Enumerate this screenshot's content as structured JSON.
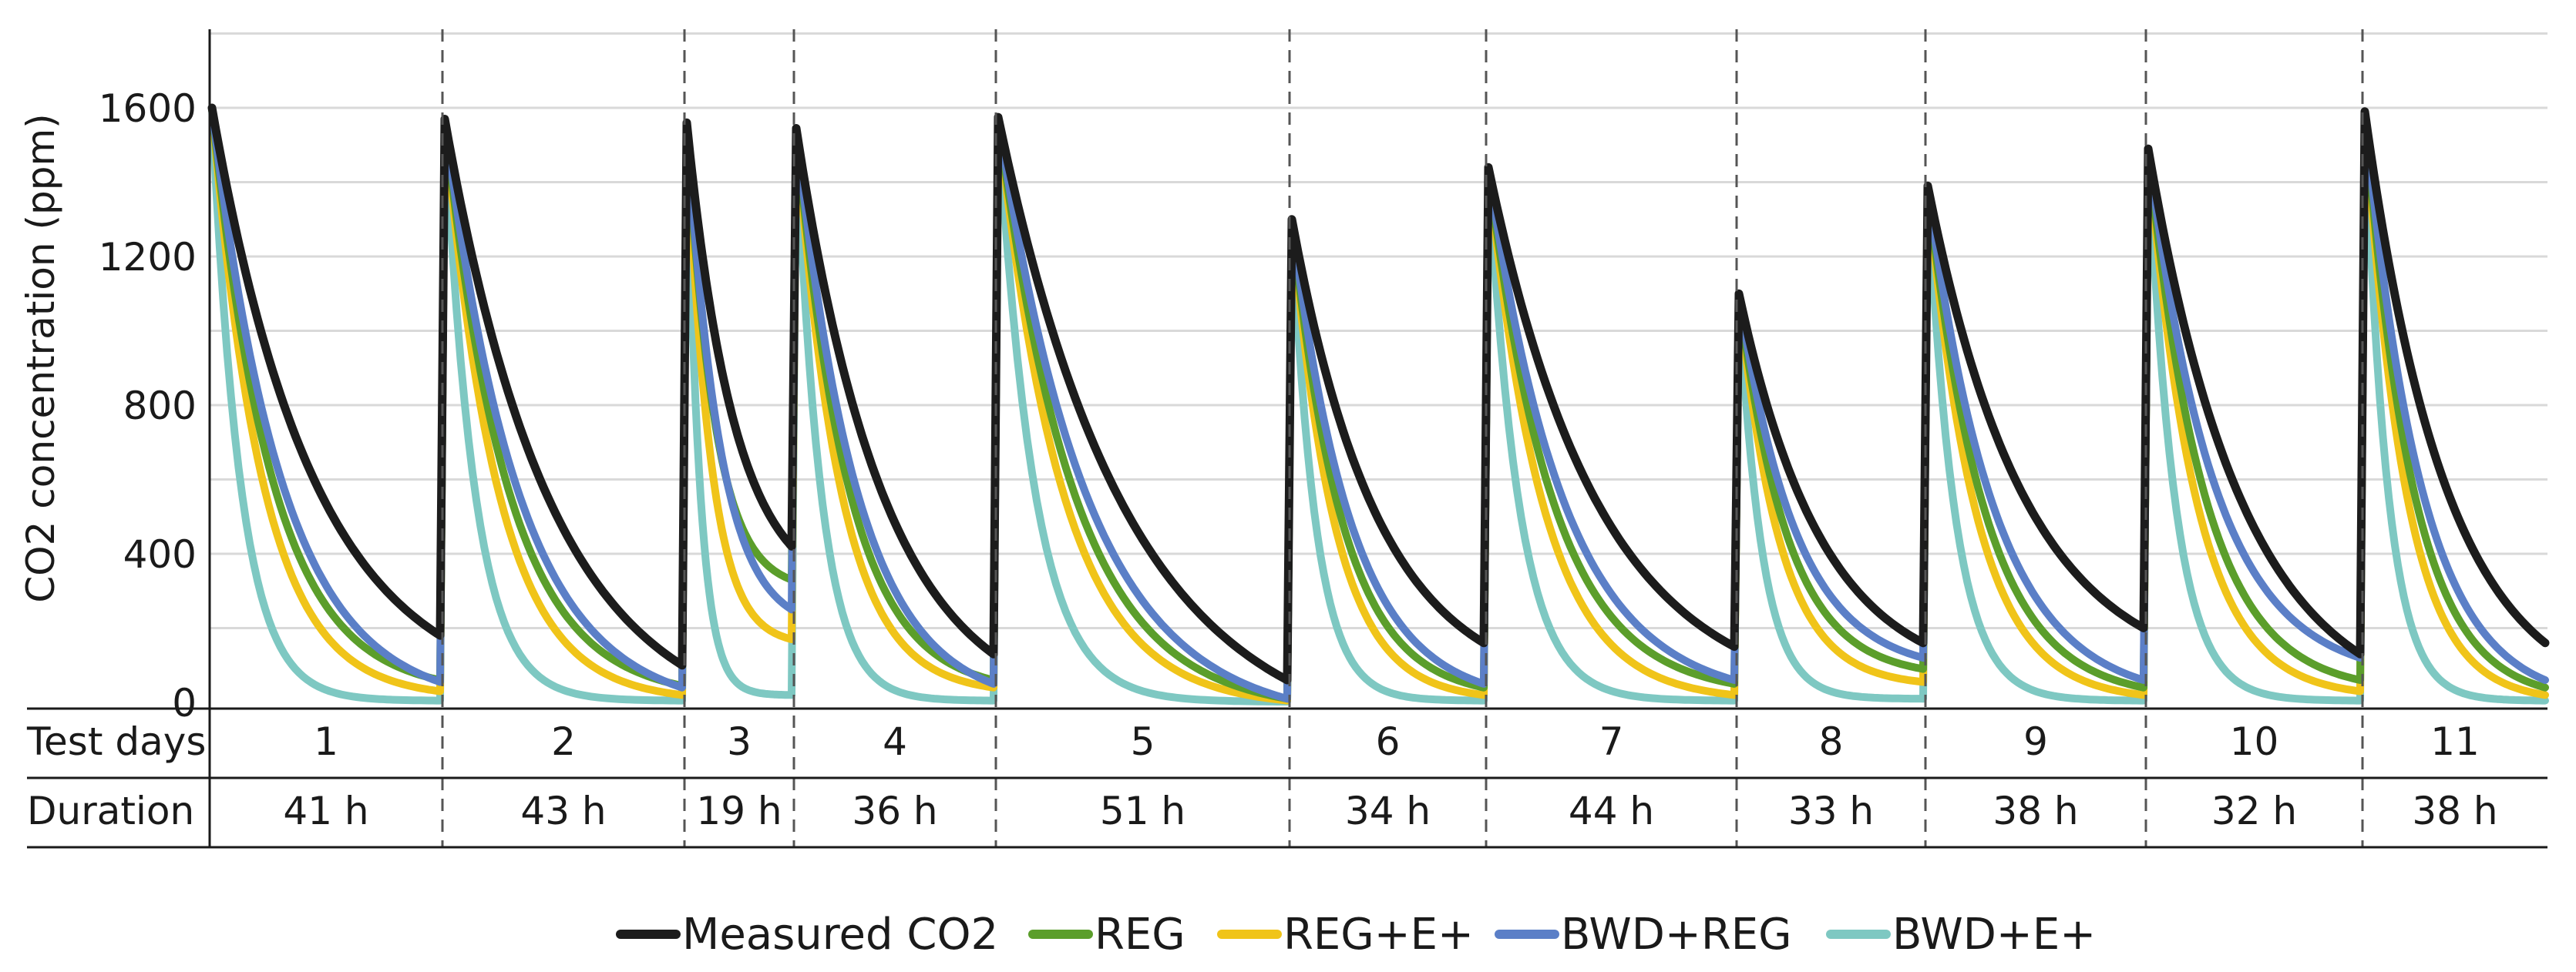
{
  "chart_data": {
    "type": "line",
    "title": "",
    "xlabel": "",
    "ylabel": "CO2  concentration (ppm)",
    "ylim": [
      0,
      1800
    ],
    "yticks": [
      0,
      400,
      800,
      1200,
      1600
    ],
    "grid": true,
    "legend_position": "bottom-center",
    "colors": {
      "Measured CO2": "#1c1c1c",
      "REG": "#5b9e2b",
      "REG+E+": "#f0c419",
      "BWD+REG": "#5b7fc7",
      "BWD+E+": "#7ec8c2"
    },
    "series": [
      {
        "name": "Measured CO2"
      },
      {
        "name": "REG"
      },
      {
        "name": "REG+E+"
      },
      {
        "name": "BWD+REG"
      },
      {
        "name": "BWD+E+"
      }
    ],
    "table": {
      "row_labels": [
        "Test days",
        "Duration"
      ],
      "columns": [
        {
          "day": "1",
          "duration": "41 h"
        },
        {
          "day": "2",
          "duration": "43 h"
        },
        {
          "day": "3",
          "duration": "19 h"
        },
        {
          "day": "4",
          "duration": "36 h"
        },
        {
          "day": "5",
          "duration": "51 h"
        },
        {
          "day": "6",
          "duration": "34 h"
        },
        {
          "day": "7",
          "duration": "44 h"
        },
        {
          "day": "8",
          "duration": "33 h"
        },
        {
          "day": "9",
          "duration": "38 h"
        },
        {
          "day": "10",
          "duration": "32 h"
        },
        {
          "day": "11",
          "duration": "38 h"
        }
      ]
    },
    "segments": [
      {
        "start_co2": 1600,
        "measured_end": 180,
        "reg_end": 60,
        "regE_end": 30,
        "bwd_end": 55,
        "bwdE_end": 5
      },
      {
        "start_co2": 1570,
        "measured_end": 100,
        "reg_end": 45,
        "regE_end": 20,
        "bwd_end": 40,
        "bwdE_end": 5
      },
      {
        "start_co2": 1560,
        "measured_end": 420,
        "reg_end": 330,
        "regE_end": 170,
        "bwd_end": 250,
        "bwdE_end": 20
      },
      {
        "start_co2": 1545,
        "measured_end": 130,
        "reg_end": 60,
        "regE_end": 40,
        "bwd_end": 50,
        "bwdE_end": 5
      },
      {
        "start_co2": 1575,
        "measured_end": 60,
        "reg_end": 10,
        "regE_end": 5,
        "bwd_end": 10,
        "bwdE_end": 2
      },
      {
        "start_co2": 1300,
        "measured_end": 160,
        "reg_end": 40,
        "regE_end": 20,
        "bwd_end": 50,
        "bwdE_end": 5
      },
      {
        "start_co2": 1440,
        "measured_end": 150,
        "reg_end": 50,
        "regE_end": 20,
        "bwd_end": 60,
        "bwdE_end": 5
      },
      {
        "start_co2": 1100,
        "measured_end": 160,
        "reg_end": 90,
        "regE_end": 55,
        "bwd_end": 120,
        "bwdE_end": 10
      },
      {
        "start_co2": 1390,
        "measured_end": 200,
        "reg_end": 40,
        "regE_end": 20,
        "bwd_end": 60,
        "bwdE_end": 5
      },
      {
        "start_co2": 1490,
        "measured_end": 130,
        "reg_end": 60,
        "regE_end": 30,
        "bwd_end": 120,
        "bwdE_end": 5
      },
      {
        "start_co2": 1590,
        "measured_end": 160,
        "reg_end": 40,
        "regE_end": 20,
        "bwd_end": 60,
        "bwdE_end": 5
      }
    ]
  }
}
